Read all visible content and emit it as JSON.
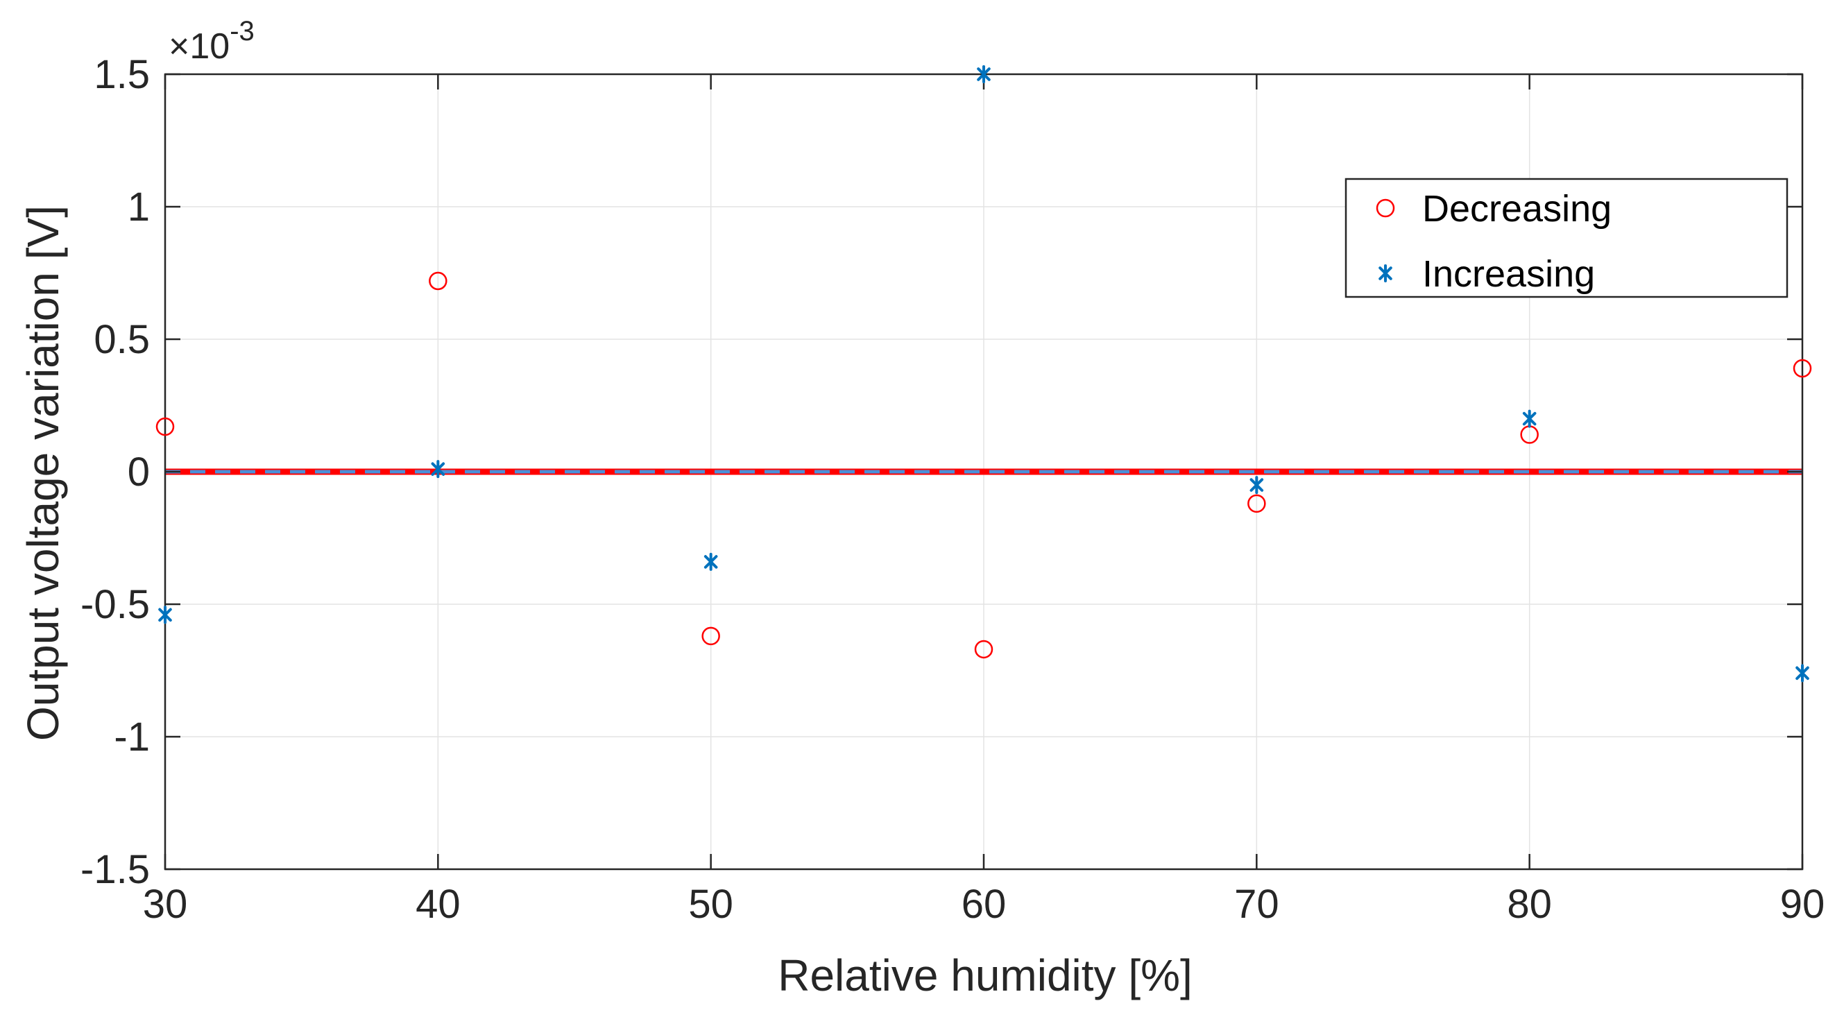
{
  "chart_data": {
    "type": "scatter",
    "title": "",
    "xlabel": "Relative humidity [%]",
    "ylabel": "Output voltage variation [V]",
    "xlim": [
      30,
      90
    ],
    "ylim": [
      -0.0015,
      0.0015
    ],
    "y_exponent": {
      "base": "×10",
      "power": "-3"
    },
    "x_ticks": [
      30,
      40,
      50,
      60,
      70,
      80,
      90
    ],
    "y_ticks": [
      -1.5,
      -1,
      -0.5,
      0,
      0.5,
      1,
      1.5
    ],
    "y_tick_labels": [
      "-1.5",
      "-1",
      "-0.5",
      "0",
      "0.5",
      "1",
      "1.5"
    ],
    "grid": true,
    "legend_position": "top-right",
    "zero_line": {
      "y": 0,
      "colors": [
        "#ff0000",
        "#4a90d9"
      ],
      "style": "dashed overlay"
    },
    "series": [
      {
        "name": "Decreasing",
        "marker": "circle",
        "color": "#ff0000",
        "x": [
          30,
          40,
          50,
          60,
          70,
          80,
          90
        ],
        "y": [
          0.00017,
          0.00072,
          -0.00062,
          -0.00067,
          -0.00012,
          0.00014,
          0.00039
        ]
      },
      {
        "name": "Increasing",
        "marker": "asterisk",
        "color": "#0072bd",
        "x": [
          30,
          40,
          50,
          60,
          70,
          80,
          90
        ],
        "y": [
          -0.00054,
          1e-05,
          -0.00034,
          0.0015,
          -5e-05,
          0.0002,
          -0.00076
        ]
      }
    ]
  }
}
